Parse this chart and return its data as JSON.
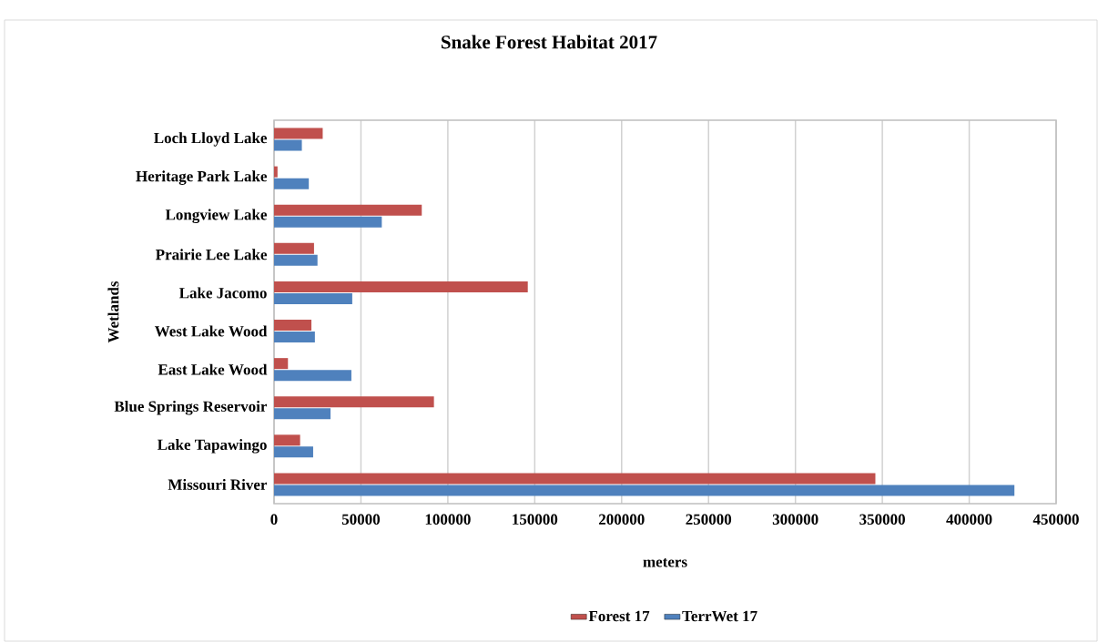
{
  "chart_data": {
    "type": "bar",
    "orientation": "horizontal",
    "title": "Snake Forest Habitat 2017",
    "xlabel": "meters",
    "ylabel": "Wetlands",
    "categories": [
      "Loch Lloyd Lake",
      "Heritage Park Lake",
      "Longview Lake",
      "Prairie Lee Lake",
      "Lake Jacomo",
      "West Lake Wood",
      "East Lake Wood",
      "Blue Springs Reservoir",
      "Lake Tapawingo",
      "Missouri River"
    ],
    "series": [
      {
        "name": "Forest 17",
        "color": "#c0504d",
        "values": [
          28000,
          2000,
          85000,
          23000,
          146000,
          21500,
          8000,
          92000,
          15000,
          346000
        ]
      },
      {
        "name": "TerrWet 17",
        "color": "#4f81bd",
        "values": [
          16000,
          20000,
          62000,
          25000,
          45000,
          23500,
          44500,
          32500,
          22500,
          426000
        ]
      }
    ],
    "xlim": [
      0,
      450000
    ],
    "xticks": [
      0,
      50000,
      100000,
      150000,
      200000,
      250000,
      300000,
      350000,
      400000,
      450000
    ],
    "grid": "x",
    "legend": "bottom"
  }
}
